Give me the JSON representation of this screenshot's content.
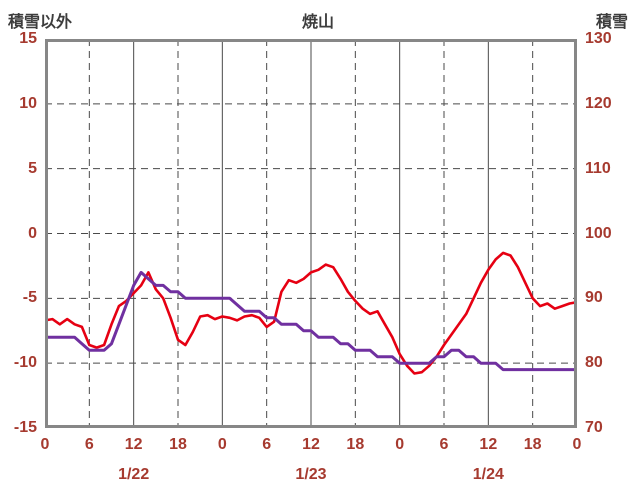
{
  "chart_data": {
    "type": "line",
    "title": "焼山",
    "left_axis": {
      "label": "積雪以外",
      "min": -15,
      "max": 15,
      "ticks": [
        15,
        10,
        5,
        0,
        -5,
        -10,
        -15
      ]
    },
    "right_axis": {
      "label": "積雪",
      "min": 70,
      "max": 130,
      "ticks": [
        130,
        120,
        110,
        100,
        90,
        80,
        70
      ]
    },
    "x_axis": {
      "span_hours": 72,
      "tick_interval_hours": 6,
      "tick_labels": [
        "0",
        "6",
        "12",
        "18",
        "0",
        "6",
        "12",
        "18",
        "0",
        "6",
        "12",
        "18",
        "0"
      ],
      "day_labels": [
        {
          "label": "1/22",
          "hour": 12
        },
        {
          "label": "1/23",
          "hour": 36
        },
        {
          "label": "1/24",
          "hour": 60
        }
      ]
    },
    "grid": {
      "horizontal": "dashed",
      "vertical_solid_every_hours": 12,
      "vertical_dashed_every_hours": 6
    },
    "series": [
      {
        "id": "red-temperature-line",
        "axis": "left",
        "color": "#e60012",
        "width": 2.6,
        "values": [
          -6.7,
          -6.6,
          -7.0,
          -6.6,
          -7.0,
          -7.2,
          -8.6,
          -8.8,
          -8.6,
          -7.0,
          -5.6,
          -5.2,
          -4.6,
          -4.0,
          -3.0,
          -4.3,
          -5.0,
          -6.5,
          -8.2,
          -8.6,
          -7.6,
          -6.4,
          -6.3,
          -6.6,
          -6.4,
          -6.5,
          -6.7,
          -6.4,
          -6.3,
          -6.5,
          -7.2,
          -6.8,
          -4.5,
          -3.6,
          -3.8,
          -3.5,
          -3.0,
          -2.8,
          -2.4,
          -2.6,
          -3.5,
          -4.5,
          -5.2,
          -5.8,
          -6.2,
          -6.0,
          -7.0,
          -8.0,
          -9.3,
          -10.2,
          -10.8,
          -10.7,
          -10.2,
          -9.5,
          -8.6,
          -7.8,
          -7.0,
          -6.2,
          -5.0,
          -3.8,
          -2.8,
          -2.0,
          -1.5,
          -1.7,
          -2.6,
          -3.8,
          -5.0,
          -5.6,
          -5.4,
          -5.8,
          -5.6,
          -5.4,
          -5.3
        ]
      },
      {
        "id": "purple-snow-depth-line",
        "axis": "right",
        "color": "#7030a0",
        "width": 3,
        "values": [
          84,
          84,
          84,
          84,
          84,
          83,
          82,
          82,
          82,
          83,
          86,
          89,
          92,
          94,
          93,
          92,
          92,
          91,
          91,
          90,
          90,
          90,
          90,
          90,
          90,
          90,
          89,
          88,
          88,
          88,
          87,
          87,
          86,
          86,
          86,
          85,
          85,
          84,
          84,
          84,
          83,
          83,
          82,
          82,
          82,
          81,
          81,
          81,
          80,
          80,
          80,
          80,
          80,
          81,
          81,
          82,
          82,
          81,
          81,
          80,
          80,
          80,
          79,
          79,
          79,
          79,
          79,
          79,
          79,
          79,
          79,
          79,
          79
        ]
      }
    ]
  }
}
